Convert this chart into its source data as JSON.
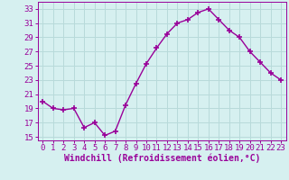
{
  "x": [
    0,
    1,
    2,
    3,
    4,
    5,
    6,
    7,
    8,
    9,
    10,
    11,
    12,
    13,
    14,
    15,
    16,
    17,
    18,
    19,
    20,
    21,
    22,
    23
  ],
  "y": [
    20.0,
    19.0,
    18.8,
    19.0,
    16.3,
    17.0,
    15.2,
    15.8,
    19.5,
    22.5,
    25.3,
    27.5,
    29.5,
    31.0,
    31.5,
    32.5,
    33.0,
    31.5,
    30.0,
    29.0,
    27.0,
    25.5,
    24.0,
    23.0
  ],
  "line_color": "#990099",
  "marker": "+",
  "bg_color": "#d6f0f0",
  "grid_color": "#b8dada",
  "xlabel": "Windchill (Refroidissement éolien,°C)",
  "xlim": [
    -0.5,
    23.5
  ],
  "ylim": [
    14.5,
    34.0
  ],
  "yticks": [
    15,
    17,
    19,
    21,
    23,
    25,
    27,
    29,
    31,
    33
  ],
  "xtick_labels": [
    "0",
    "1",
    "2",
    "3",
    "4",
    "5",
    "6",
    "7",
    "8",
    "9",
    "10",
    "11",
    "12",
    "13",
    "14",
    "15",
    "16",
    "17",
    "18",
    "19",
    "20",
    "21",
    "22",
    "23"
  ],
  "xlabel_fontsize": 7,
  "tick_fontsize": 6.5,
  "line_width": 1.0,
  "marker_size": 4,
  "marker_ew": 1.2
}
